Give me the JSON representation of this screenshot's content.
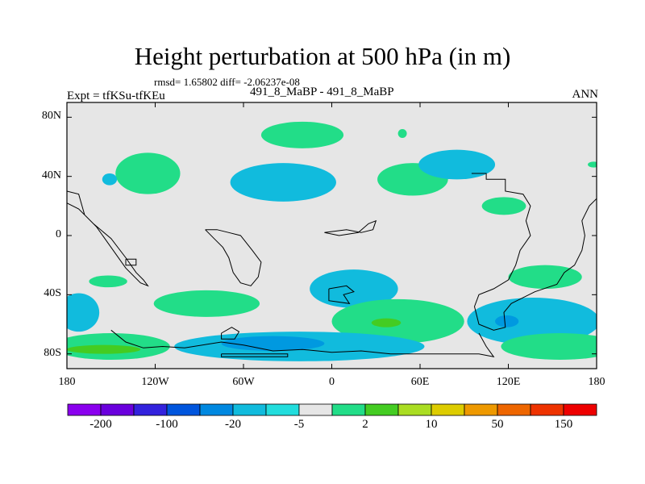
{
  "figure": {
    "title": "Height perturbation at 500 hPa (in m)",
    "stats_line": "rmsd= 1.65802 diff= -2.06237e-08",
    "left_label": "Expt = tfKSu-tfKEu",
    "center_label": "491_8_MaBP - 491_8_MaBP",
    "right_label": "ANN"
  },
  "map": {
    "lat_range": [
      -90,
      90
    ],
    "lon_range": [
      -180,
      180
    ],
    "lat_ticks": [
      {
        "value": 80,
        "label": "80N"
      },
      {
        "value": 40,
        "label": "40N"
      },
      {
        "value": 0,
        "label": "0"
      },
      {
        "value": -40,
        "label": "40S"
      },
      {
        "value": -80,
        "label": "80S"
      }
    ],
    "lon_ticks": [
      {
        "value": -180,
        "label": "180"
      },
      {
        "value": -120,
        "label": "120W"
      },
      {
        "value": -60,
        "label": "60W"
      },
      {
        "value": 0,
        "label": "0"
      },
      {
        "value": 60,
        "label": "60E"
      },
      {
        "value": 120,
        "label": "120E"
      },
      {
        "value": 180,
        "label": "180"
      }
    ],
    "background_color": "#e6e6e6",
    "positive_color": "#22dd88",
    "negative_color": "#11bbdd",
    "strong_positive_color": "#44cc22",
    "strong_negative_color": "#0099e0",
    "anomalies": [
      {
        "lon": -20,
        "lat": 68,
        "rlon": 28,
        "rlat": 9,
        "level": 2
      },
      {
        "lon": 48,
        "lat": 69,
        "rlon": 3,
        "rlat": 3,
        "level": 2
      },
      {
        "lon": -125,
        "lat": 42,
        "rlon": 22,
        "rlat": 14,
        "level": 2
      },
      {
        "lon": -33,
        "lat": 36,
        "rlon": 36,
        "rlat": 13,
        "level": -5
      },
      {
        "lon": 55,
        "lat": 38,
        "rlon": 24,
        "rlat": 11,
        "level": 2
      },
      {
        "lon": 85,
        "lat": 48,
        "rlon": 26,
        "rlat": 10,
        "level": -5
      },
      {
        "lon": 117,
        "lat": 20,
        "rlon": 15,
        "rlat": 6,
        "level": 2
      },
      {
        "lon": -151,
        "lat": 38,
        "rlon": 5,
        "rlat": 4,
        "level": -5
      },
      {
        "lon": 178,
        "lat": 48,
        "rlon": 4,
        "rlat": 2,
        "level": 2
      },
      {
        "lon": -152,
        "lat": -31,
        "rlon": 13,
        "rlat": 4,
        "level": 2
      },
      {
        "lon": -85,
        "lat": -46,
        "rlon": 36,
        "rlat": 9,
        "level": 2
      },
      {
        "lon": 15,
        "lat": -36,
        "rlon": 30,
        "rlat": 13,
        "level": -5
      },
      {
        "lon": 45,
        "lat": -58,
        "rlon": 45,
        "rlat": 15,
        "level": 2
      },
      {
        "lon": 37,
        "lat": -59,
        "rlon": 10,
        "rlat": 3,
        "level": 10
      },
      {
        "lon": 145,
        "lat": -28,
        "rlon": 25,
        "rlat": 8,
        "level": 2
      },
      {
        "lon": 137,
        "lat": -58,
        "rlon": 45,
        "rlat": 16,
        "level": -5
      },
      {
        "lon": 119,
        "lat": -58,
        "rlon": 8,
        "rlat": 4,
        "level": -20
      },
      {
        "lon": -172,
        "lat": -52,
        "rlon": 14,
        "rlat": 13,
        "level": -5
      },
      {
        "lon": -150,
        "lat": -75,
        "rlon": 40,
        "rlat": 9,
        "level": 2
      },
      {
        "lon": -155,
        "lat": -77,
        "rlon": 25,
        "rlat": 3,
        "level": 10
      },
      {
        "lon": -22,
        "lat": -75,
        "rlon": 85,
        "rlat": 10,
        "level": -5
      },
      {
        "lon": -40,
        "lat": -73,
        "rlon": 35,
        "rlat": 5,
        "level": -20
      },
      {
        "lon": 155,
        "lat": -75,
        "rlon": 40,
        "rlat": 9,
        "level": 2
      }
    ],
    "coastlines": [
      [
        [
          -180,
          30
        ],
        [
          -172,
          28
        ],
        [
          -168,
          14
        ],
        [
          -160,
          6
        ],
        [
          -150,
          -8
        ],
        [
          -140,
          -22
        ],
        [
          -130,
          -32
        ],
        [
          -125,
          -34
        ],
        [
          -128,
          -30
        ],
        [
          -133,
          -25
        ],
        [
          -140,
          -15
        ],
        [
          -150,
          -2
        ],
        [
          -162,
          8
        ],
        [
          -172,
          18
        ],
        [
          -180,
          22
        ]
      ],
      [
        [
          -86,
          4
        ],
        [
          -80,
          -2
        ],
        [
          -74,
          -8
        ],
        [
          -70,
          -15
        ],
        [
          -67,
          -25
        ],
        [
          -62,
          -32
        ],
        [
          -55,
          -34
        ],
        [
          -50,
          -28
        ],
        [
          -48,
          -18
        ],
        [
          -54,
          -10
        ],
        [
          -62,
          0
        ],
        [
          -70,
          2
        ],
        [
          -78,
          4
        ],
        [
          -86,
          4
        ]
      ],
      [
        [
          -140,
          -16
        ],
        [
          -133,
          -16
        ],
        [
          -133,
          -20
        ],
        [
          -140,
          -20
        ],
        [
          -140,
          -16
        ]
      ],
      [
        [
          -5,
          2
        ],
        [
          5,
          0
        ],
        [
          18,
          2
        ],
        [
          25,
          8
        ],
        [
          30,
          10
        ],
        [
          28,
          4
        ],
        [
          20,
          2
        ],
        [
          10,
          4
        ],
        [
          -5,
          2
        ]
      ],
      [
        [
          -2,
          -36
        ],
        [
          10,
          -34
        ],
        [
          15,
          -38
        ],
        [
          8,
          -40
        ],
        [
          12,
          -46
        ],
        [
          -2,
          -44
        ],
        [
          -2,
          -36
        ]
      ],
      [
        [
          95,
          42
        ],
        [
          105,
          42
        ],
        [
          105,
          38
        ],
        [
          118,
          38
        ],
        [
          118,
          30
        ],
        [
          130,
          28
        ],
        [
          135,
          20
        ],
        [
          132,
          10
        ],
        [
          135,
          0
        ],
        [
          128,
          -10
        ],
        [
          125,
          -20
        ],
        [
          120,
          -30
        ],
        [
          110,
          -36
        ],
        [
          100,
          -40
        ],
        [
          97,
          -48
        ],
        [
          100,
          -60
        ],
        [
          110,
          -64
        ],
        [
          118,
          -62
        ],
        [
          117,
          -52
        ],
        [
          122,
          -46
        ],
        [
          138,
          -38
        ],
        [
          153,
          -33
        ],
        [
          158,
          -25
        ],
        [
          165,
          -20
        ],
        [
          170,
          -10
        ],
        [
          172,
          0
        ],
        [
          170,
          10
        ],
        [
          175,
          20
        ],
        [
          180,
          25
        ]
      ],
      [
        [
          -150,
          -64
        ],
        [
          -140,
          -72
        ],
        [
          -128,
          -76
        ],
        [
          -115,
          -75
        ],
        [
          -100,
          -76
        ],
        [
          -75,
          -72
        ],
        [
          -60,
          -74
        ],
        [
          -40,
          -78
        ],
        [
          -20,
          -77
        ],
        [
          0,
          -79
        ],
        [
          20,
          -78
        ],
        [
          40,
          -80
        ],
        [
          60,
          -80
        ],
        [
          80,
          -80
        ],
        [
          100,
          -80
        ],
        [
          110,
          -82
        ],
        [
          105,
          -75
        ],
        [
          100,
          -66
        ]
      ],
      [
        [
          -75,
          -66
        ],
        [
          -68,
          -62
        ],
        [
          -63,
          -65
        ],
        [
          -66,
          -70
        ],
        [
          -75,
          -70
        ],
        [
          -75,
          -66
        ]
      ],
      [
        [
          -75,
          -80
        ],
        [
          -30,
          -80
        ],
        [
          -30,
          -82
        ],
        [
          -75,
          -82
        ],
        [
          -75,
          -80
        ]
      ]
    ]
  },
  "colorbar": {
    "colors": [
      "#8a00ee",
      "#6a00dd",
      "#3322dd",
      "#0055dd",
      "#0088e0",
      "#11bbdd",
      "#22dddd",
      "#e6e6e6",
      "#22dd88",
      "#44cc22",
      "#aadd22",
      "#ddcc00",
      "#ee9900",
      "#ee6600",
      "#ee3300",
      "#ee0000"
    ],
    "labels": [
      {
        "boundary": 1,
        "text": "-200"
      },
      {
        "boundary": 3,
        "text": "-100"
      },
      {
        "boundary": 5,
        "text": "-20"
      },
      {
        "boundary": 7,
        "text": "-5"
      },
      {
        "boundary": 9,
        "text": "2"
      },
      {
        "boundary": 11,
        "text": "10"
      },
      {
        "boundary": 13,
        "text": "50"
      },
      {
        "boundary": 15,
        "text": "150"
      }
    ]
  }
}
